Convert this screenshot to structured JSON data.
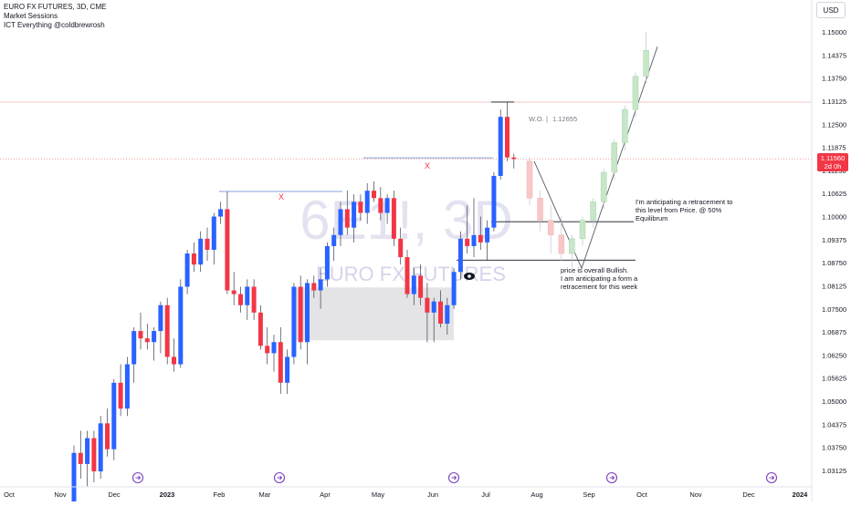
{
  "header": {
    "title": "EURO FX FUTURES, 3D, CME",
    "indicator_1": "Market Sessions",
    "indicator_2": "ICT Everything @coldbrewrosh"
  },
  "currency_label": "USD",
  "watermark": {
    "symbol": "6E1!, 3D",
    "name": "EURO FX FUTURES"
  },
  "current_price": {
    "value": "1.11560",
    "countdown": "2d 0h",
    "color": "#f23645"
  },
  "annotations": {
    "wo_label": "W.O.",
    "wo_separator": "|",
    "wo_value": "1.12655",
    "note_retracement_line1": "I'm anticipating a retracement to",
    "note_retracement_line2": "this level from Price. @ 50%",
    "note_retracement_line3": "Equilibrum",
    "note_bullish_line1": "price is overall Bullish.",
    "note_bullish_line2": "I am anticipating a form a",
    "note_bullish_line3": "retracement for this week",
    "x_marker_1": "X",
    "x_marker_2": "X"
  },
  "colors": {
    "up": "#2962ff",
    "down": "#f23645",
    "projected_up": "#c8e6c9",
    "projected_down": "#f8c8c8",
    "event_icon": "#7b3fbf"
  },
  "icons": {
    "session_markers": "arrow-circle-icon",
    "eye": "eye-icon"
  },
  "chart_data": {
    "type": "candlestick",
    "title": "EURO FX FUTURES, 3D, CME",
    "y_axis_ticks": [
      "1.15000",
      "1.14375",
      "1.13750",
      "1.13125",
      "1.12500",
      "1.11875",
      "1.11250",
      "1.10625",
      "1.10000",
      "1.09375",
      "1.08750",
      "1.08125",
      "1.07500",
      "1.06875",
      "1.06250",
      "1.05625",
      "1.05000",
      "1.04375",
      "1.03750",
      "1.03125"
    ],
    "x_axis_labels": [
      "Oct",
      "Nov",
      "Dec",
      "2023",
      "Feb",
      "Mar",
      "Apr",
      "May",
      "Jun",
      "Jul",
      "Aug",
      "Sep",
      "Oct",
      "Nov",
      "Dec",
      "2024"
    ],
    "ylim": [
      1.03,
      1.155
    ],
    "levels": {
      "upper_resistance": 1.131,
      "current_price": 1.1156,
      "equilibrium": 1.0986,
      "lower_support": 1.0882,
      "swing_high_1": 1.1068,
      "swing_high_2": 1.1159
    },
    "candles": [
      {
        "o": 1.022,
        "h": 1.038,
        "l": 1.018,
        "c": 1.036
      },
      {
        "o": 1.036,
        "h": 1.042,
        "l": 1.029,
        "c": 1.033
      },
      {
        "o": 1.033,
        "h": 1.042,
        "l": 1.027,
        "c": 1.04
      },
      {
        "o": 1.04,
        "h": 1.042,
        "l": 1.028,
        "c": 1.031
      },
      {
        "o": 1.031,
        "h": 1.046,
        "l": 1.029,
        "c": 1.044
      },
      {
        "o": 1.044,
        "h": 1.048,
        "l": 1.035,
        "c": 1.037
      },
      {
        "o": 1.037,
        "h": 1.056,
        "l": 1.034,
        "c": 1.055
      },
      {
        "o": 1.055,
        "h": 1.06,
        "l": 1.046,
        "c": 1.048
      },
      {
        "o": 1.048,
        "h": 1.062,
        "l": 1.046,
        "c": 1.06
      },
      {
        "o": 1.06,
        "h": 1.07,
        "l": 1.055,
        "c": 1.069
      },
      {
        "o": 1.069,
        "h": 1.074,
        "l": 1.064,
        "c": 1.067
      },
      {
        "o": 1.067,
        "h": 1.071,
        "l": 1.064,
        "c": 1.066
      },
      {
        "o": 1.066,
        "h": 1.07,
        "l": 1.061,
        "c": 1.069
      },
      {
        "o": 1.069,
        "h": 1.077,
        "l": 1.063,
        "c": 1.076
      },
      {
        "o": 1.076,
        "h": 1.078,
        "l": 1.06,
        "c": 1.062
      },
      {
        "o": 1.062,
        "h": 1.067,
        "l": 1.058,
        "c": 1.06
      },
      {
        "o": 1.06,
        "h": 1.083,
        "l": 1.059,
        "c": 1.081
      },
      {
        "o": 1.081,
        "h": 1.091,
        "l": 1.079,
        "c": 1.09
      },
      {
        "o": 1.09,
        "h": 1.093,
        "l": 1.085,
        "c": 1.087
      },
      {
        "o": 1.087,
        "h": 1.096,
        "l": 1.085,
        "c": 1.094
      },
      {
        "o": 1.094,
        "h": 1.097,
        "l": 1.088,
        "c": 1.091
      },
      {
        "o": 1.091,
        "h": 1.101,
        "l": 1.087,
        "c": 1.1
      },
      {
        "o": 1.1,
        "h": 1.104,
        "l": 1.098,
        "c": 1.102
      },
      {
        "o": 1.102,
        "h": 1.1068,
        "l": 1.079,
        "c": 1.08
      },
      {
        "o": 1.08,
        "h": 1.085,
        "l": 1.076,
        "c": 1.079
      },
      {
        "o": 1.079,
        "h": 1.081,
        "l": 1.074,
        "c": 1.076
      },
      {
        "o": 1.076,
        "h": 1.083,
        "l": 1.072,
        "c": 1.081
      },
      {
        "o": 1.081,
        "h": 1.083,
        "l": 1.072,
        "c": 1.074
      },
      {
        "o": 1.074,
        "h": 1.076,
        "l": 1.064,
        "c": 1.065
      },
      {
        "o": 1.065,
        "h": 1.07,
        "l": 1.06,
        "c": 1.063
      },
      {
        "o": 1.063,
        "h": 1.068,
        "l": 1.058,
        "c": 1.066
      },
      {
        "o": 1.066,
        "h": 1.07,
        "l": 1.052,
        "c": 1.055
      },
      {
        "o": 1.055,
        "h": 1.064,
        "l": 1.052,
        "c": 1.062
      },
      {
        "o": 1.062,
        "h": 1.082,
        "l": 1.06,
        "c": 1.081
      },
      {
        "o": 1.081,
        "h": 1.084,
        "l": 1.064,
        "c": 1.066
      },
      {
        "o": 1.066,
        "h": 1.083,
        "l": 1.06,
        "c": 1.082
      },
      {
        "o": 1.082,
        "h": 1.084,
        "l": 1.078,
        "c": 1.08
      },
      {
        "o": 1.08,
        "h": 1.086,
        "l": 1.075,
        "c": 1.083
      },
      {
        "o": 1.083,
        "h": 1.093,
        "l": 1.081,
        "c": 1.092
      },
      {
        "o": 1.092,
        "h": 1.097,
        "l": 1.088,
        "c": 1.095
      },
      {
        "o": 1.095,
        "h": 1.104,
        "l": 1.092,
        "c": 1.102
      },
      {
        "o": 1.102,
        "h": 1.107,
        "l": 1.095,
        "c": 1.097
      },
      {
        "o": 1.097,
        "h": 1.106,
        "l": 1.093,
        "c": 1.104
      },
      {
        "o": 1.104,
        "h": 1.106,
        "l": 1.099,
        "c": 1.101
      },
      {
        "o": 1.101,
        "h": 1.109,
        "l": 1.098,
        "c": 1.107
      },
      {
        "o": 1.107,
        "h": 1.1095,
        "l": 1.104,
        "c": 1.105
      },
      {
        "o": 1.105,
        "h": 1.108,
        "l": 1.099,
        "c": 1.101
      },
      {
        "o": 1.101,
        "h": 1.106,
        "l": 1.098,
        "c": 1.105
      },
      {
        "o": 1.105,
        "h": 1.107,
        "l": 1.092,
        "c": 1.094
      },
      {
        "o": 1.094,
        "h": 1.097,
        "l": 1.087,
        "c": 1.089
      },
      {
        "o": 1.089,
        "h": 1.091,
        "l": 1.078,
        "c": 1.079
      },
      {
        "o": 1.079,
        "h": 1.086,
        "l": 1.076,
        "c": 1.084
      },
      {
        "o": 1.084,
        "h": 1.087,
        "l": 1.076,
        "c": 1.078
      },
      {
        "o": 1.078,
        "h": 1.082,
        "l": 1.066,
        "c": 1.074
      },
      {
        "o": 1.074,
        "h": 1.078,
        "l": 1.066,
        "c": 1.077
      },
      {
        "o": 1.077,
        "h": 1.08,
        "l": 1.07,
        "c": 1.071
      },
      {
        "o": 1.071,
        "h": 1.078,
        "l": 1.068,
        "c": 1.076
      },
      {
        "o": 1.076,
        "h": 1.086,
        "l": 1.075,
        "c": 1.085
      },
      {
        "o": 1.085,
        "h": 1.096,
        "l": 1.083,
        "c": 1.094
      },
      {
        "o": 1.094,
        "h": 1.103,
        "l": 1.09,
        "c": 1.092
      },
      {
        "o": 1.092,
        "h": 1.105,
        "l": 1.089,
        "c": 1.095
      },
      {
        "o": 1.095,
        "h": 1.1,
        "l": 1.091,
        "c": 1.093
      },
      {
        "o": 1.093,
        "h": 1.099,
        "l": 1.088,
        "c": 1.097
      },
      {
        "o": 1.097,
        "h": 1.112,
        "l": 1.096,
        "c": 1.111
      },
      {
        "o": 1.111,
        "h": 1.129,
        "l": 1.11,
        "c": 1.127
      },
      {
        "o": 1.127,
        "h": 1.131,
        "l": 1.115,
        "c": 1.116
      },
      {
        "o": 1.116,
        "h": 1.117,
        "l": 1.113,
        "c": 1.1156
      }
    ],
    "projected_candles": [
      {
        "o": 1.115,
        "h": 1.116,
        "l": 1.103,
        "c": 1.105
      },
      {
        "o": 1.105,
        "h": 1.107,
        "l": 1.096,
        "c": 1.099
      },
      {
        "o": 1.099,
        "h": 1.103,
        "l": 1.09,
        "c": 1.095
      },
      {
        "o": 1.095,
        "h": 1.1,
        "l": 1.088,
        "c": 1.09
      },
      {
        "o": 1.09,
        "h": 1.095,
        "l": 1.086,
        "c": 1.094
      },
      {
        "o": 1.094,
        "h": 1.1,
        "l": 1.092,
        "c": 1.099
      },
      {
        "o": 1.099,
        "h": 1.105,
        "l": 1.097,
        "c": 1.104
      },
      {
        "o": 1.104,
        "h": 1.113,
        "l": 1.102,
        "c": 1.112
      },
      {
        "o": 1.112,
        "h": 1.121,
        "l": 1.11,
        "c": 1.12
      },
      {
        "o": 1.12,
        "h": 1.13,
        "l": 1.118,
        "c": 1.129
      },
      {
        "o": 1.129,
        "h": 1.139,
        "l": 1.127,
        "c": 1.138
      },
      {
        "o": 1.138,
        "h": 1.15,
        "l": 1.136,
        "c": 1.145
      }
    ]
  }
}
